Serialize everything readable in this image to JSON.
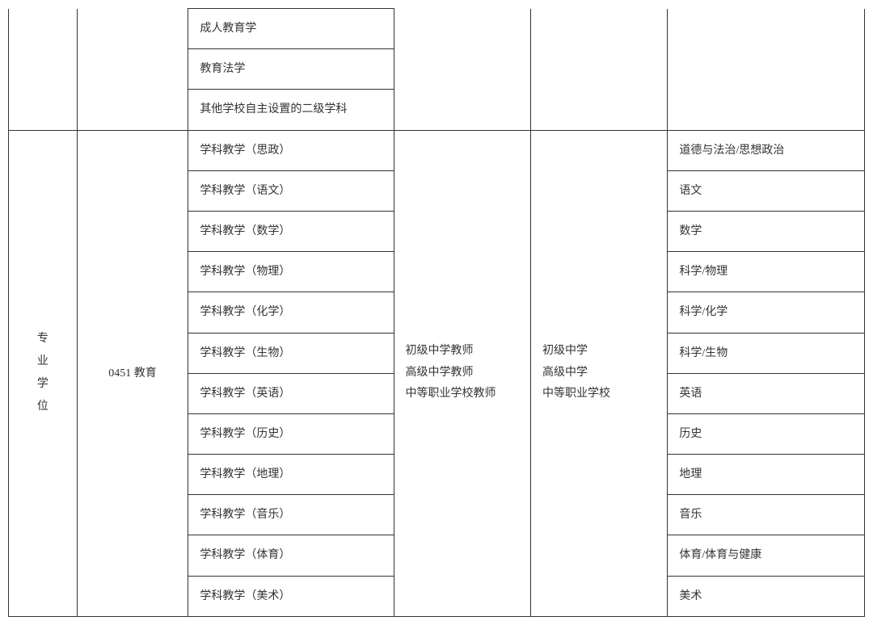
{
  "table": {
    "border_color": "#333333",
    "background_color": "#ffffff",
    "text_color": "#333333",
    "font_size": 14,
    "columns": [
      {
        "width_pct": 8,
        "align": "center"
      },
      {
        "width_pct": 13,
        "align": "center"
      },
      {
        "width_pct": 24,
        "align": "left"
      },
      {
        "width_pct": 16,
        "align": "left"
      },
      {
        "width_pct": 16,
        "align": "left"
      },
      {
        "width_pct": 23,
        "align": "left"
      }
    ],
    "section_top": {
      "col1": "",
      "col2": "",
      "subjects": [
        "成人教育学",
        "教育法学",
        "其他学校自主设置的二级学科"
      ],
      "col4": "",
      "col5": "",
      "col6": ""
    },
    "section_main": {
      "col1_vertical": [
        "专",
        "业",
        "学",
        "位"
      ],
      "col2": "0451 教育",
      "col4_lines": [
        "初级中学教师",
        "高级中学教师",
        "中等职业学校教师"
      ],
      "col5_lines": [
        "初级中学",
        "高级中学",
        "中等职业学校"
      ],
      "rows": [
        {
          "subject": "学科教学（思政）",
          "mapped": "道德与法治/思想政治"
        },
        {
          "subject": "学科教学（语文）",
          "mapped": "语文"
        },
        {
          "subject": "学科教学（数学）",
          "mapped": "数学"
        },
        {
          "subject": "学科教学（物理）",
          "mapped": "科学/物理"
        },
        {
          "subject": "学科教学（化学）",
          "mapped": "科学/化学"
        },
        {
          "subject": "学科教学（生物）",
          "mapped": "科学/生物"
        },
        {
          "subject": "学科教学（英语）",
          "mapped": "英语"
        },
        {
          "subject": "学科教学（历史）",
          "mapped": "历史"
        },
        {
          "subject": "学科教学（地理）",
          "mapped": "地理"
        },
        {
          "subject": "学科教学（音乐）",
          "mapped": "音乐"
        },
        {
          "subject": "学科教学（体育）",
          "mapped": "体育/体育与健康"
        },
        {
          "subject": "学科教学（美术）",
          "mapped": "美术"
        }
      ]
    }
  }
}
